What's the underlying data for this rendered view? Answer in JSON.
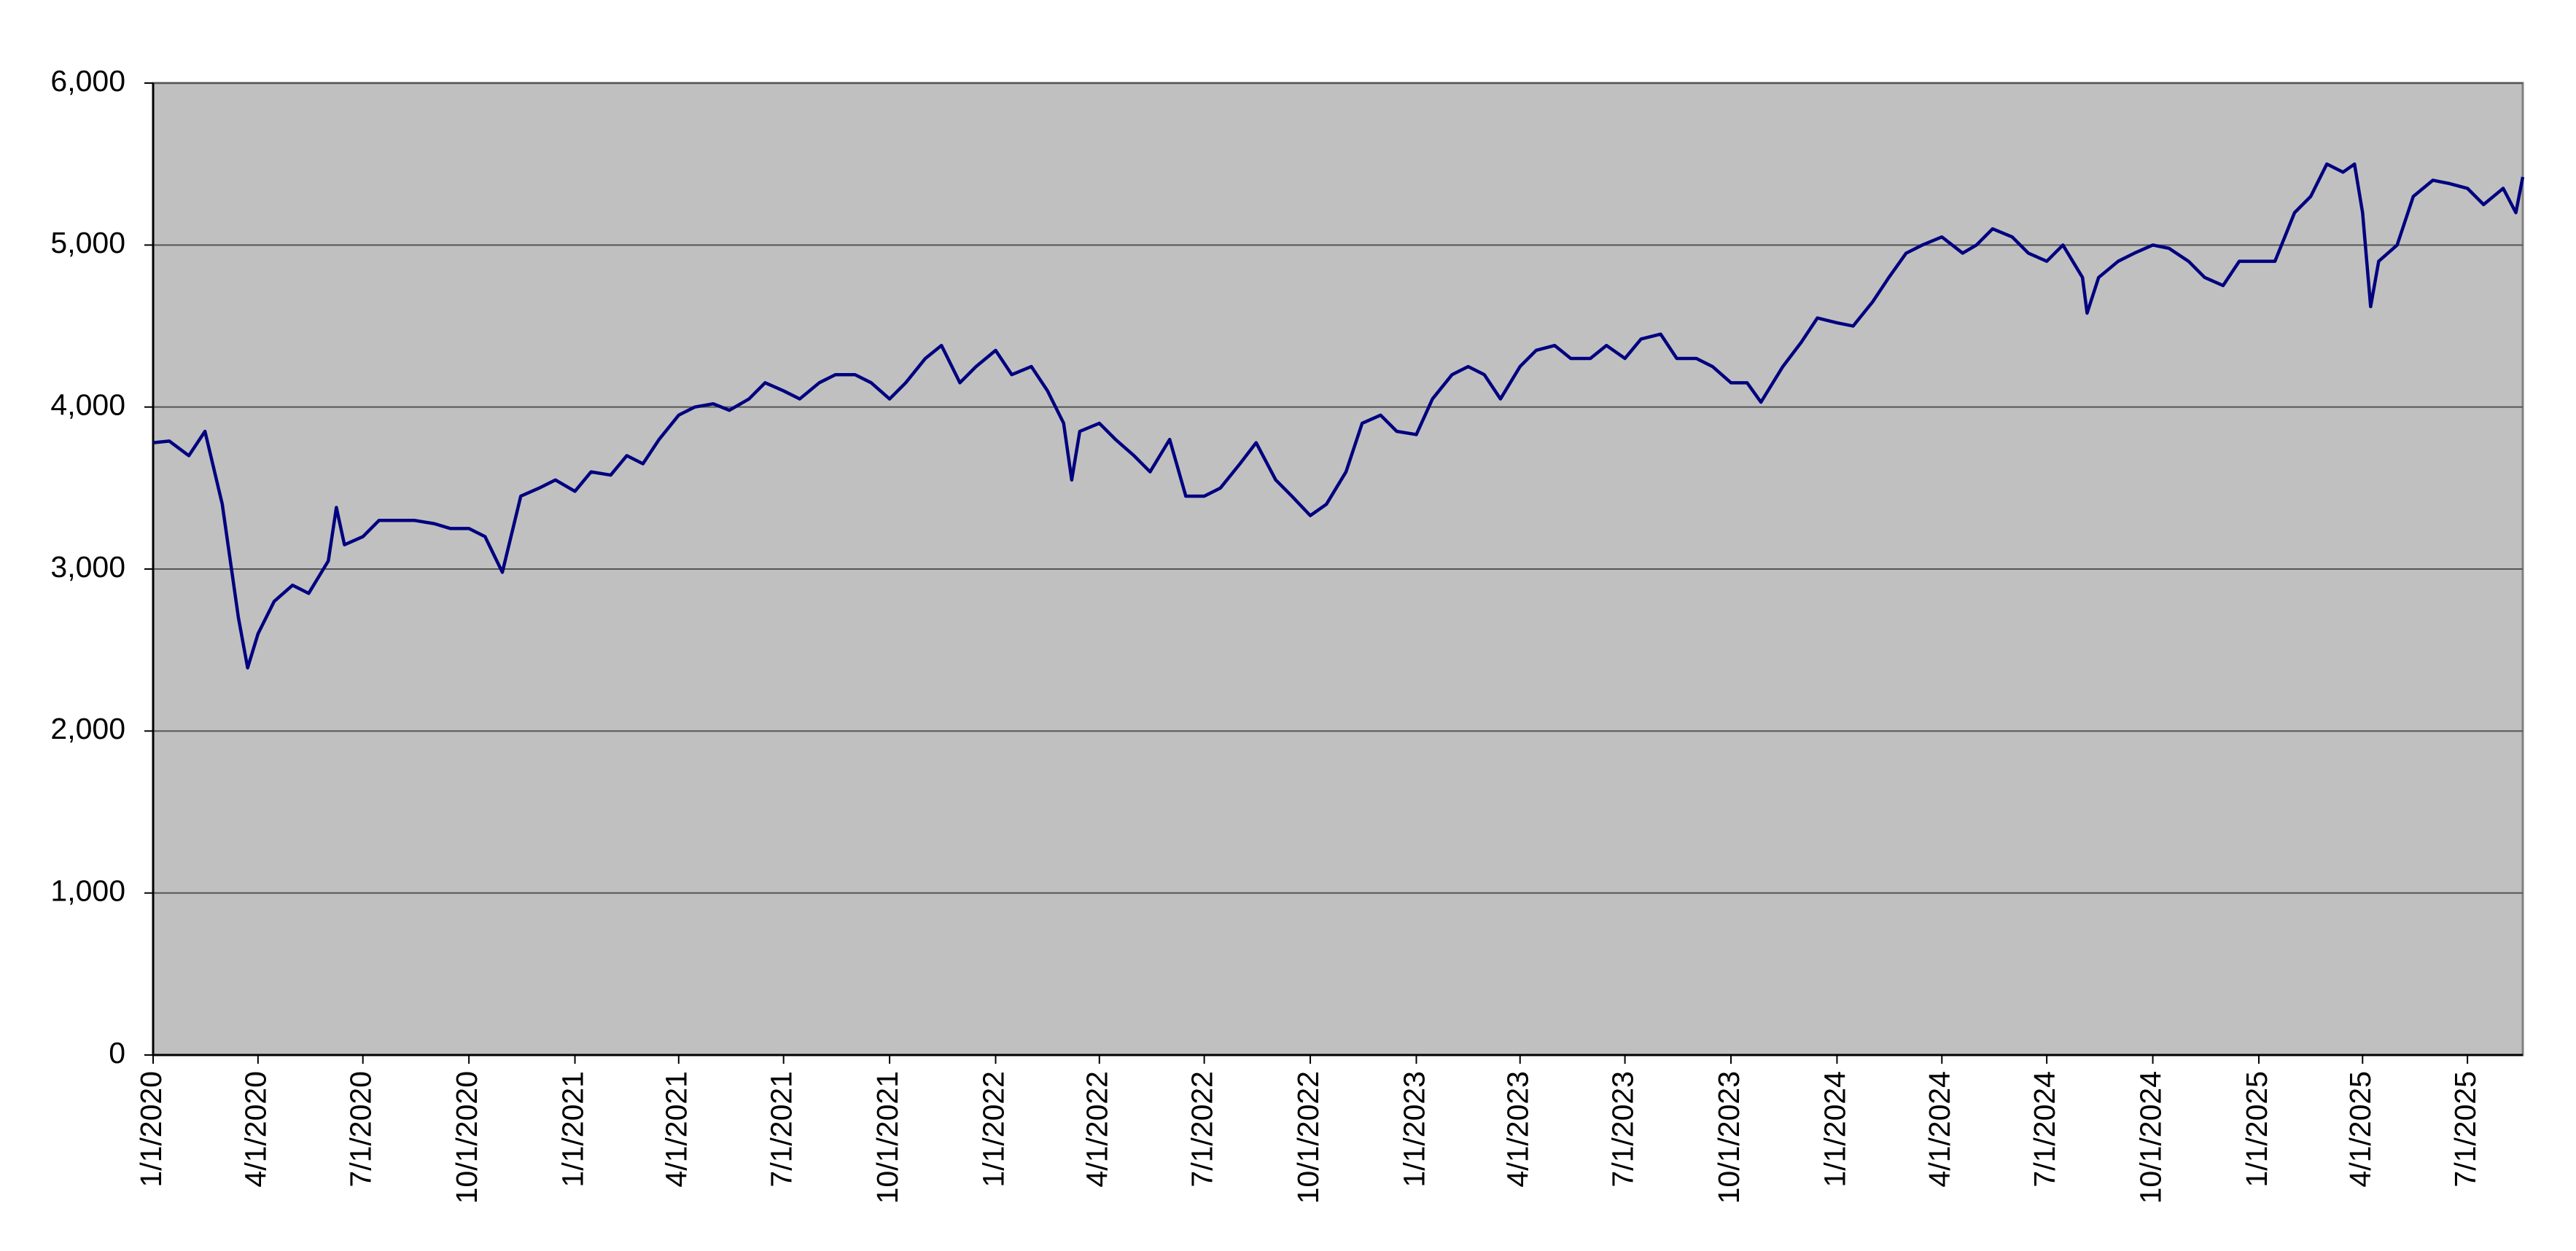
{
  "chart_data": {
    "type": "line",
    "x": [
      "1/1/2020",
      "1/15/2020",
      "2/1/2020",
      "2/15/2020",
      "3/1/2020",
      "3/15/2020",
      "3/23/2020",
      "4/1/2020",
      "4/15/2020",
      "5/1/2020",
      "5/15/2020",
      "6/1/2020",
      "6/8/2020",
      "6/15/2020",
      "7/1/2020",
      "7/15/2020",
      "8/1/2020",
      "8/15/2020",
      "9/1/2020",
      "9/15/2020",
      "10/1/2020",
      "10/15/2020",
      "10/30/2020",
      "11/15/2020",
      "12/1/2020",
      "12/15/2020",
      "1/1/2021",
      "1/15/2021",
      "2/1/2021",
      "2/15/2021",
      "3/1/2021",
      "3/15/2021",
      "4/1/2021",
      "4/15/2021",
      "5/1/2021",
      "5/15/2021",
      "6/1/2021",
      "6/15/2021",
      "7/1/2021",
      "7/15/2021",
      "8/1/2021",
      "8/15/2021",
      "9/1/2021",
      "9/15/2021",
      "10/1/2021",
      "10/15/2021",
      "11/1/2021",
      "11/15/2021",
      "12/1/2021",
      "12/15/2021",
      "1/1/2022",
      "1/15/2022",
      "2/1/2022",
      "2/15/2022",
      "3/1/2022",
      "3/8/2022",
      "3/15/2022",
      "4/1/2022",
      "4/15/2022",
      "5/1/2022",
      "5/15/2022",
      "6/1/2022",
      "6/15/2022",
      "7/1/2022",
      "7/15/2022",
      "8/1/2022",
      "8/15/2022",
      "9/1/2022",
      "9/15/2022",
      "10/1/2022",
      "10/15/2022",
      "11/1/2022",
      "11/15/2022",
      "12/1/2022",
      "12/15/2022",
      "1/1/2023",
      "1/15/2023",
      "2/1/2023",
      "2/15/2023",
      "3/1/2023",
      "3/15/2023",
      "4/1/2023",
      "4/15/2023",
      "5/1/2023",
      "5/15/2023",
      "6/1/2023",
      "6/15/2023",
      "7/1/2023",
      "7/15/2023",
      "8/1/2023",
      "8/15/2023",
      "9/1/2023",
      "9/15/2023",
      "10/1/2023",
      "10/15/2023",
      "10/27/2023",
      "11/15/2023",
      "12/1/2023",
      "12/15/2023",
      "1/1/2024",
      "1/15/2024",
      "2/1/2024",
      "2/15/2024",
      "3/1/2024",
      "3/15/2024",
      "4/1/2024",
      "4/19/2024",
      "5/1/2024",
      "5/15/2024",
      "6/1/2024",
      "6/15/2024",
      "7/1/2024",
      "7/15/2024",
      "8/1/2024",
      "8/5/2024",
      "8/15/2024",
      "9/1/2024",
      "9/15/2024",
      "10/1/2024",
      "10/15/2024",
      "11/1/2024",
      "11/15/2024",
      "12/1/2024",
      "12/15/2024",
      "1/1/2025",
      "1/15/2025",
      "2/1/2025",
      "2/15/2025",
      "3/1/2025",
      "3/15/2025",
      "3/25/2025",
      "4/1/2025",
      "4/8/2025",
      "4/15/2025",
      "5/1/2025",
      "5/15/2025",
      "6/1/2025",
      "6/15/2025",
      "7/1/2025",
      "7/15/2025",
      "8/1/2025",
      "8/12/2025",
      "8/18/2025"
    ],
    "values": [
      3780,
      3790,
      3700,
      3850,
      3400,
      2700,
      2390,
      2600,
      2800,
      2900,
      2850,
      3050,
      3380,
      3150,
      3200,
      3300,
      3300,
      3300,
      3280,
      3250,
      3250,
      3200,
      2980,
      3450,
      3500,
      3550,
      3480,
      3600,
      3580,
      3700,
      3650,
      3800,
      3950,
      4000,
      4020,
      3980,
      4050,
      4150,
      4100,
      4050,
      4150,
      4200,
      4200,
      4150,
      4050,
      4150,
      4300,
      4380,
      4150,
      4250,
      4350,
      4200,
      4250,
      4100,
      3900,
      3550,
      3850,
      3900,
      3800,
      3700,
      3600,
      3800,
      3450,
      3450,
      3500,
      3650,
      3780,
      3550,
      3450,
      3330,
      3400,
      3600,
      3900,
      3950,
      3850,
      3830,
      4050,
      4200,
      4250,
      4200,
      4050,
      4250,
      4350,
      4380,
      4300,
      4300,
      4380,
      4300,
      4420,
      4450,
      4300,
      4300,
      4250,
      4150,
      4150,
      4030,
      4250,
      4400,
      4550,
      4520,
      4500,
      4650,
      4800,
      4950,
      5000,
      5050,
      4950,
      5000,
      5100,
      5050,
      4950,
      4900,
      5000,
      4800,
      4580,
      4800,
      4900,
      4950,
      5000,
      4980,
      4900,
      4800,
      4750,
      4900,
      4900,
      4900,
      5200,
      5300,
      5500,
      5450,
      5500,
      5200,
      4620,
      4900,
      5000,
      5300,
      5400,
      5380,
      5350,
      5250,
      5350,
      5200,
      5420
    ],
    "color": "#000080",
    "xlim": [
      "1/1/2020",
      "8/18/2025"
    ],
    "xticks": [
      "1/1/2020",
      "4/1/2020",
      "7/1/2020",
      "10/1/2020",
      "1/1/2021",
      "4/1/2021",
      "7/1/2021",
      "10/1/2021",
      "1/1/2022",
      "4/1/2022",
      "7/1/2022",
      "10/1/2022",
      "1/1/2023",
      "4/1/2023",
      "7/1/2023",
      "10/1/2023",
      "1/1/2024",
      "4/1/2024",
      "7/1/2024",
      "10/1/2024",
      "1/1/2025",
      "4/1/2025",
      "7/1/2025"
    ],
    "ylim": [
      0,
      6000
    ],
    "yticks": [
      0,
      {
        "value": 1000,
        "label": "1,000"
      },
      {
        "value": 2000,
        "label": "2,000"
      },
      {
        "value": 3000,
        "label": "3,000"
      },
      {
        "value": 4000,
        "label": "4,000"
      },
      {
        "value": 5000,
        "label": "5,000"
      },
      {
        "value": 6000,
        "label": "6,000"
      }
    ],
    "grid": true,
    "plot_background": "#c0c0c0"
  }
}
